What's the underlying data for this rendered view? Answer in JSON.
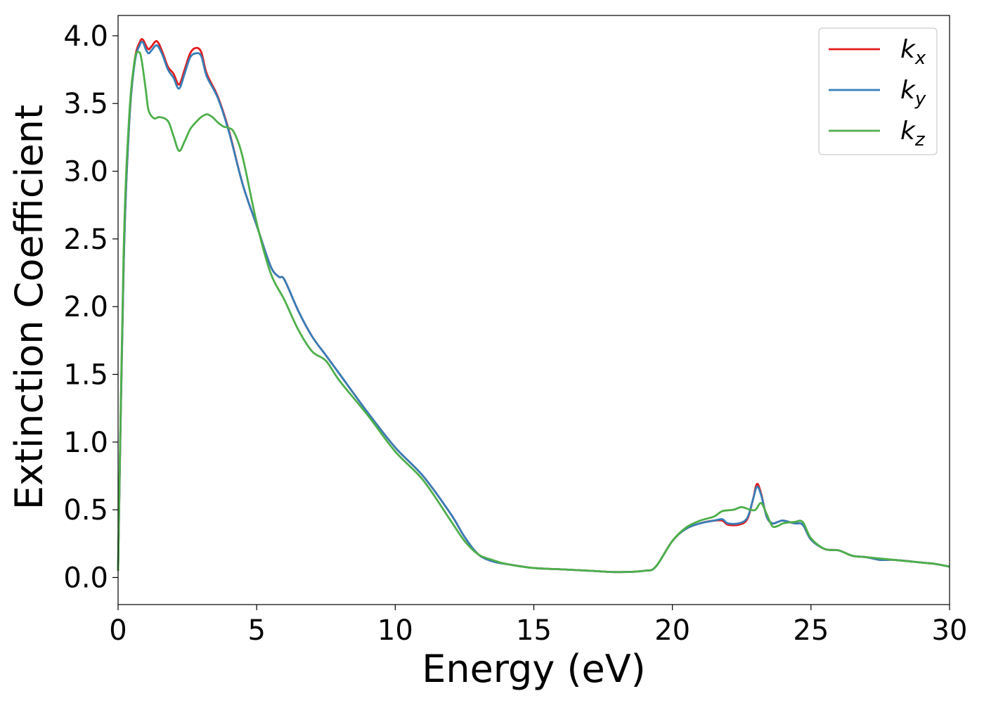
{
  "chart_data": {
    "type": "line",
    "xlabel": "Energy (eV)",
    "ylabel": "Extinction Coefficient",
    "xlim": [
      0,
      30
    ],
    "ylim": [
      -0.2,
      4.15
    ],
    "xticks": [
      0,
      5,
      10,
      15,
      20,
      25,
      30
    ],
    "xtick_labels": [
      "0",
      "5",
      "10",
      "15",
      "20",
      "25",
      "30"
    ],
    "yticks": [
      0.0,
      0.5,
      1.0,
      1.5,
      2.0,
      2.5,
      3.0,
      3.5,
      4.0
    ],
    "ytick_labels": [
      "0.0",
      "0.5",
      "1.0",
      "1.5",
      "2.0",
      "2.5",
      "3.0",
      "3.5",
      "4.0"
    ],
    "grid": false,
    "legend_position": "top-right",
    "series": [
      {
        "name": "k_x",
        "label_main": "k",
        "label_sub": "x",
        "color": "#e41a1c",
        "x": [
          0,
          0.2,
          0.4,
          0.6,
          0.8,
          0.9,
          1.0,
          1.1,
          1.2,
          1.4,
          1.6,
          1.8,
          2.0,
          2.2,
          2.4,
          2.6,
          2.8,
          3.0,
          3.2,
          3.6,
          4.0,
          4.5,
          5.0,
          5.5,
          5.8,
          6.0,
          6.5,
          7.0,
          7.5,
          8.0,
          9.0,
          10.0,
          11.0,
          12.0,
          12.5,
          13.0,
          13.5,
          14.0,
          15.0,
          16.0,
          17.0,
          18.0,
          19.0,
          19.4,
          20.0,
          20.5,
          21.0,
          21.5,
          21.8,
          22.0,
          22.4,
          22.7,
          22.9,
          23.05,
          23.2,
          23.4,
          23.6,
          23.8,
          24.0,
          24.4,
          24.7,
          25.0,
          25.5,
          26.0,
          26.5,
          27.0,
          27.5,
          28.0,
          29.0,
          29.5,
          30.0
        ],
        "y": [
          0.05,
          2.3,
          3.35,
          3.82,
          3.96,
          3.97,
          3.93,
          3.9,
          3.92,
          3.96,
          3.88,
          3.77,
          3.72,
          3.64,
          3.75,
          3.87,
          3.91,
          3.88,
          3.72,
          3.55,
          3.3,
          2.9,
          2.6,
          2.3,
          2.22,
          2.2,
          1.97,
          1.78,
          1.64,
          1.5,
          1.22,
          0.96,
          0.75,
          0.47,
          0.3,
          0.17,
          0.12,
          0.1,
          0.07,
          0.06,
          0.05,
          0.04,
          0.05,
          0.08,
          0.27,
          0.36,
          0.4,
          0.42,
          0.42,
          0.39,
          0.39,
          0.43,
          0.57,
          0.69,
          0.62,
          0.45,
          0.4,
          0.41,
          0.42,
          0.4,
          0.39,
          0.28,
          0.21,
          0.2,
          0.16,
          0.15,
          0.13,
          0.13,
          0.11,
          0.1,
          0.08
        ]
      },
      {
        "name": "k_y",
        "label_main": "k",
        "label_sub": "y",
        "color": "#377eb8",
        "x": [
          0,
          0.2,
          0.4,
          0.6,
          0.8,
          0.9,
          1.0,
          1.1,
          1.2,
          1.4,
          1.6,
          1.8,
          2.0,
          2.2,
          2.4,
          2.6,
          2.8,
          3.0,
          3.2,
          3.6,
          4.0,
          4.5,
          5.0,
          5.5,
          5.8,
          6.0,
          6.5,
          7.0,
          7.5,
          8.0,
          9.0,
          10.0,
          11.0,
          12.0,
          12.5,
          13.0,
          13.5,
          14.0,
          15.0,
          16.0,
          17.0,
          18.0,
          19.0,
          19.4,
          20.0,
          20.5,
          21.0,
          21.5,
          21.8,
          22.0,
          22.4,
          22.7,
          22.9,
          23.05,
          23.2,
          23.4,
          23.6,
          23.8,
          24.0,
          24.4,
          24.7,
          25.0,
          25.5,
          26.0,
          26.5,
          27.0,
          27.5,
          28.0,
          29.0,
          29.5,
          30.0
        ],
        "y": [
          0.05,
          2.3,
          3.35,
          3.8,
          3.94,
          3.95,
          3.9,
          3.87,
          3.89,
          3.93,
          3.86,
          3.75,
          3.69,
          3.61,
          3.72,
          3.84,
          3.87,
          3.85,
          3.7,
          3.54,
          3.29,
          2.9,
          2.6,
          2.3,
          2.22,
          2.2,
          1.97,
          1.78,
          1.64,
          1.5,
          1.22,
          0.96,
          0.75,
          0.47,
          0.3,
          0.17,
          0.12,
          0.1,
          0.07,
          0.06,
          0.05,
          0.04,
          0.05,
          0.08,
          0.27,
          0.36,
          0.4,
          0.42,
          0.43,
          0.4,
          0.4,
          0.44,
          0.57,
          0.67,
          0.61,
          0.45,
          0.4,
          0.41,
          0.42,
          0.4,
          0.39,
          0.28,
          0.21,
          0.2,
          0.16,
          0.15,
          0.13,
          0.13,
          0.11,
          0.1,
          0.08
        ]
      },
      {
        "name": "k_z",
        "label_main": "k",
        "label_sub": "z",
        "color": "#4daf4a",
        "x": [
          0,
          0.2,
          0.4,
          0.6,
          0.75,
          0.85,
          1.0,
          1.1,
          1.3,
          1.5,
          1.8,
          2.0,
          2.2,
          2.4,
          2.6,
          2.8,
          3.0,
          3.2,
          3.4,
          3.6,
          3.8,
          4.0,
          4.2,
          4.5,
          5.0,
          5.5,
          6.0,
          6.5,
          7.0,
          7.5,
          8.0,
          9.0,
          10.0,
          11.0,
          12.0,
          12.5,
          13.0,
          13.5,
          14.0,
          15.0,
          16.0,
          17.0,
          18.0,
          19.0,
          19.4,
          20.0,
          20.5,
          21.0,
          21.5,
          21.8,
          22.2,
          22.5,
          22.8,
          23.0,
          23.2,
          23.4,
          23.6,
          23.8,
          24.0,
          24.4,
          24.7,
          25.0,
          25.5,
          26.0,
          26.5,
          27.0,
          27.5,
          28.0,
          29.0,
          29.5,
          30.0
        ],
        "y": [
          0.05,
          2.4,
          3.4,
          3.82,
          3.88,
          3.82,
          3.6,
          3.45,
          3.39,
          3.4,
          3.37,
          3.26,
          3.15,
          3.22,
          3.31,
          3.36,
          3.4,
          3.42,
          3.4,
          3.36,
          3.33,
          3.32,
          3.28,
          3.1,
          2.62,
          2.25,
          2.05,
          1.83,
          1.67,
          1.6,
          1.45,
          1.2,
          0.93,
          0.72,
          0.42,
          0.27,
          0.17,
          0.13,
          0.1,
          0.07,
          0.06,
          0.05,
          0.04,
          0.05,
          0.08,
          0.27,
          0.37,
          0.42,
          0.45,
          0.49,
          0.5,
          0.52,
          0.5,
          0.5,
          0.55,
          0.47,
          0.38,
          0.38,
          0.4,
          0.41,
          0.41,
          0.29,
          0.21,
          0.2,
          0.16,
          0.15,
          0.14,
          0.13,
          0.11,
          0.1,
          0.08
        ]
      }
    ]
  }
}
